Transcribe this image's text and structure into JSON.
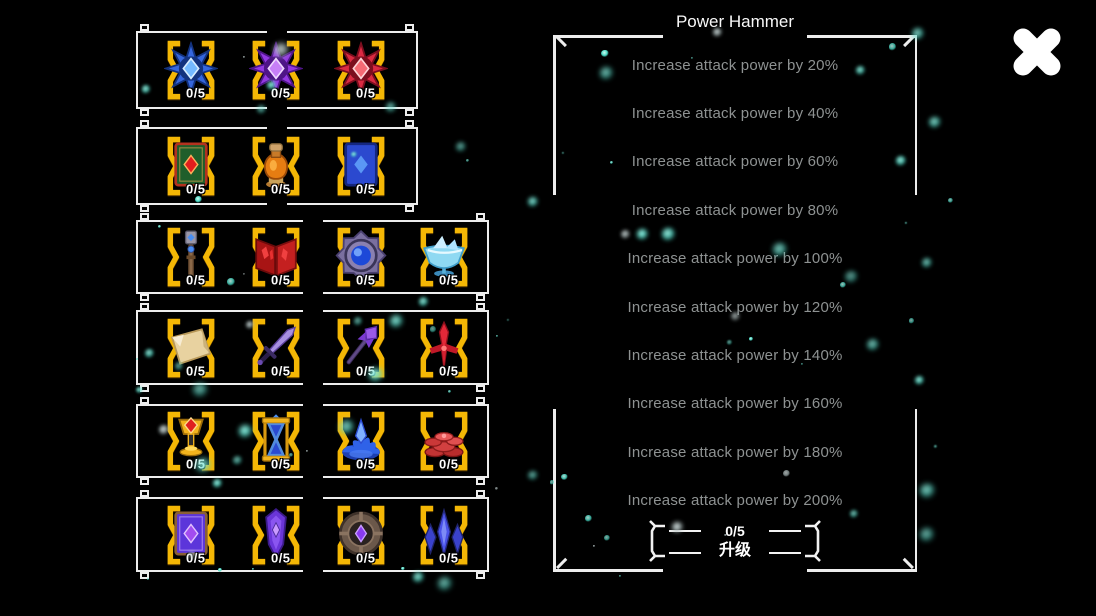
{
  "upgrade_panel": {
    "title": "Power Hammer",
    "effects": [
      "Increase attack power by 20%",
      "Increase attack power by 40%",
      "Increase attack power by 60%",
      "Increase attack power by 80%",
      "Increase attack power by 100%",
      "Increase attack power by 120%",
      "Increase attack power by 140%",
      "Increase attack power by 160%",
      "Increase attack power by 180%",
      "Increase attack power by 200%"
    ],
    "button": {
      "count": "0/5",
      "label": "升级"
    }
  },
  "materials_panel": {
    "rows": [
      {
        "slots": [
          {
            "icon": "blue-star-medal",
            "count": "0/5"
          },
          {
            "icon": "purple-star-medal",
            "count": "0/5"
          },
          {
            "icon": "red-star-medal",
            "count": "0/5"
          }
        ]
      },
      {
        "slots": [
          {
            "icon": "green-book",
            "count": "0/5"
          },
          {
            "icon": "orange-potion",
            "count": "0/5"
          },
          {
            "icon": "blue-book",
            "count": "0/5"
          }
        ]
      },
      {
        "slots": [
          {
            "icon": "scepter",
            "count": "0/5"
          },
          {
            "icon": "red-book",
            "count": "0/5"
          },
          {
            "icon": "purple-amulet",
            "count": "0/5"
          },
          {
            "icon": "crystal-bowl",
            "count": "0/5"
          }
        ]
      },
      {
        "slots": [
          {
            "icon": "parchment",
            "count": "0/5"
          },
          {
            "icon": "purple-sword",
            "count": "0/5"
          },
          {
            "icon": "purple-staff",
            "count": "0/5"
          },
          {
            "icon": "red-dagger",
            "count": "0/5"
          }
        ]
      },
      {
        "slots": [
          {
            "icon": "golden-chalice",
            "count": "0/5"
          },
          {
            "icon": "golden-hourglass",
            "count": "0/5"
          },
          {
            "icon": "blue-crown",
            "count": "0/5"
          },
          {
            "icon": "red-coins",
            "count": "0/5"
          }
        ]
      },
      {
        "slots": [
          {
            "icon": "purple-book",
            "count": "0/5"
          },
          {
            "icon": "purple-shield",
            "count": "0/5"
          },
          {
            "icon": "dark-amulet",
            "count": "0/5"
          },
          {
            "icon": "blue-crystals",
            "count": "0/5"
          }
        ]
      }
    ]
  },
  "close_button": {
    "icon": "close-x-icon"
  },
  "colors": {
    "background": "#000000",
    "frame_white": "#ededed",
    "slot_gold": "#f4b705",
    "effect_text": "#8e9292",
    "title_text": "#f8f8f8",
    "particle_teal": "#46d6c2"
  }
}
